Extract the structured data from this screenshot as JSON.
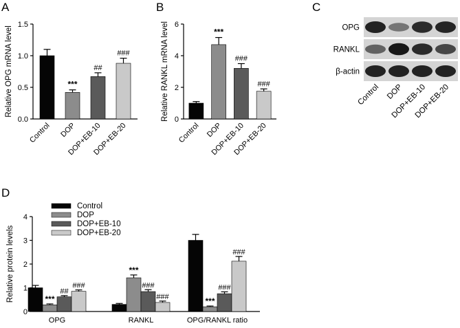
{
  "panels": {
    "A": "A",
    "B": "B",
    "C": "C",
    "D": "D"
  },
  "colors": {
    "Control": "#050505",
    "DOP": "#8c8c8c",
    "DOP+EB-10": "#5a5a5a",
    "DOP+EB-20": "#c9c9c9"
  },
  "chart_data": [
    {
      "panel": "A",
      "type": "bar",
      "categories": [
        "Control",
        "DOP",
        "DOP+EB-10",
        "DOP+EB-20"
      ],
      "values": [
        1.0,
        0.42,
        0.67,
        0.88
      ],
      "errors": [
        0.1,
        0.04,
        0.06,
        0.08
      ],
      "significance": [
        "",
        "***",
        "##",
        "###"
      ],
      "ylabel": "Relative OPG mRNA level",
      "ylim": [
        0,
        1.5
      ],
      "yticks": [
        "0.0",
        "0.5",
        "1.0",
        "1.5"
      ]
    },
    {
      "panel": "B",
      "type": "bar",
      "categories": [
        "Control",
        "DOP",
        "DOP+EB-10",
        "DOP+EB-20"
      ],
      "values": [
        1.0,
        4.7,
        3.2,
        1.75
      ],
      "errors": [
        0.1,
        0.45,
        0.3,
        0.15
      ],
      "significance": [
        "",
        "***",
        "###",
        "###"
      ],
      "ylabel": "Relative RANKL mRNA level",
      "ylim": [
        0,
        6
      ],
      "yticks": [
        "0",
        "2",
        "4",
        "6"
      ]
    },
    {
      "panel": "D",
      "type": "bar",
      "categories": [
        "OPG",
        "RANKL",
        "OPG/RANKL ratio"
      ],
      "series": [
        {
          "name": "Control",
          "values": [
            1.0,
            0.3,
            3.0
          ],
          "errors": [
            0.1,
            0.04,
            0.25
          ],
          "significance": [
            "",
            "",
            ""
          ]
        },
        {
          "name": "DOP",
          "values": [
            0.28,
            1.42,
            0.2
          ],
          "errors": [
            0.04,
            0.12,
            0.03
          ],
          "significance": [
            "***",
            "***",
            "***"
          ]
        },
        {
          "name": "DOP+EB-10",
          "values": [
            0.62,
            0.84,
            0.75
          ],
          "errors": [
            0.05,
            0.08,
            0.08
          ],
          "significance": [
            "##",
            "###",
            "###"
          ]
        },
        {
          "name": "DOP+EB-20",
          "values": [
            0.85,
            0.38,
            2.12
          ],
          "errors": [
            0.06,
            0.06,
            0.2
          ],
          "significance": [
            "###",
            "###",
            "###"
          ]
        }
      ],
      "ylabel": "Relative protein levels",
      "ylim": [
        0,
        4
      ],
      "yticks": [
        "0",
        "1",
        "2",
        "3",
        "4"
      ],
      "legend": "top-left"
    }
  ],
  "blot": {
    "rows": [
      "OPG",
      "RANKL",
      "β-actin"
    ],
    "lanes": [
      "Control",
      "DOP",
      "DOP+EB-10",
      "DOP+EB-20"
    ],
    "intensity": [
      [
        0.9,
        0.45,
        0.85,
        0.88
      ],
      [
        0.55,
        0.95,
        0.85,
        0.7
      ],
      [
        0.9,
        0.9,
        0.9,
        0.9
      ]
    ]
  }
}
